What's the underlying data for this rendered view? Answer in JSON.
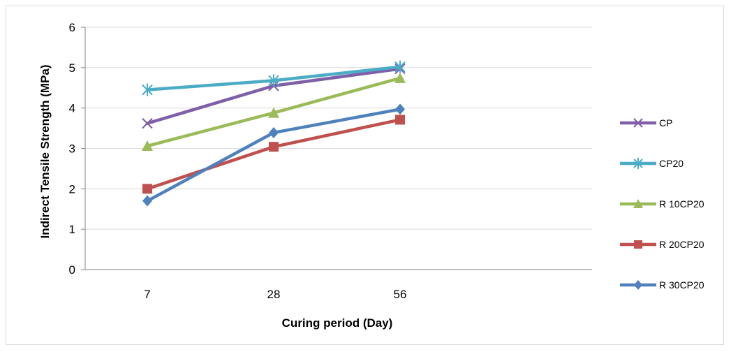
{
  "chart_data": {
    "type": "line",
    "categories": [
      "7",
      "28",
      "56"
    ],
    "series": [
      {
        "name": "CP",
        "values": [
          3.62,
          4.55,
          4.97
        ],
        "color": "#7f5fa8",
        "marker": "x-cross"
      },
      {
        "name": "CP20",
        "values": [
          4.45,
          4.68,
          5.02
        ],
        "color": "#4bacc6",
        "marker": "star"
      },
      {
        "name": "R 10CP20",
        "values": [
          3.06,
          3.88,
          4.74
        ],
        "color": "#9bbb59",
        "marker": "triangle"
      },
      {
        "name": "R 20CP20",
        "values": [
          2.0,
          3.04,
          3.71
        ],
        "color": "#c0504d",
        "marker": "square"
      },
      {
        "name": "R 30CP20",
        "values": [
          1.7,
          3.39,
          3.97
        ],
        "color": "#4f81bd",
        "marker": "diamond"
      }
    ],
    "xlabel": "Curing period (Day)",
    "ylabel": "Indirect Tensile Strength  (MPa)",
    "ylim": [
      0,
      6
    ],
    "yticks": [
      "0",
      "1",
      "2",
      "3",
      "4",
      "5",
      "6"
    ],
    "grid": true,
    "legend_position": "right"
  }
}
